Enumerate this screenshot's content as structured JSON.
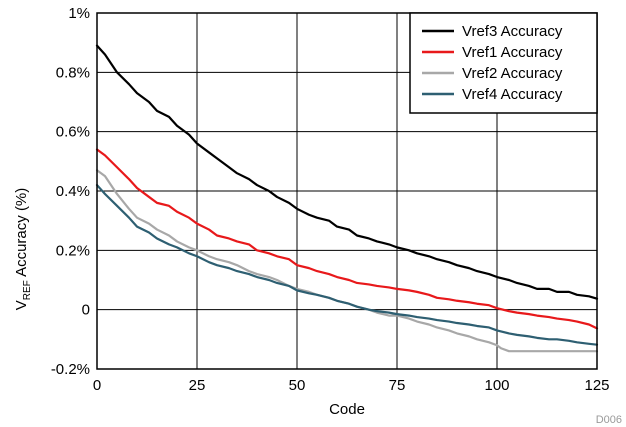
{
  "chart_data": {
    "type": "line",
    "xlabel": "Code",
    "ylabel_main": "V",
    "ylabel_sub": "REF",
    "ylabel_rest": " Accuracy (%)",
    "xlim": [
      0,
      125
    ],
    "ylim": [
      -0.2,
      1.0
    ],
    "x_ticks": [
      0,
      25,
      50,
      75,
      100,
      125
    ],
    "x_tick_labels": [
      "0",
      "25",
      "50",
      "75",
      "100",
      "125"
    ],
    "y_ticks": [
      -0.2,
      0,
      0.2,
      0.4,
      0.6,
      0.8,
      1.0
    ],
    "y_tick_labels": [
      "-0.2%",
      "0",
      "0.2%",
      "0.4%",
      "0.6%",
      "0.8%",
      "1%"
    ],
    "grid": true,
    "legend_position": "top-right",
    "figure_id": "D006",
    "series": [
      {
        "name": "Vref3 Accuracy",
        "color": "#000000",
        "x": [
          0,
          2,
          5,
          8,
          10,
          13,
          15,
          18,
          20,
          23,
          25,
          28,
          30,
          33,
          35,
          38,
          40,
          43,
          45,
          48,
          50,
          53,
          55,
          58,
          60,
          63,
          65,
          68,
          70,
          73,
          75,
          78,
          80,
          83,
          85,
          88,
          90,
          93,
          95,
          98,
          100,
          103,
          105,
          108,
          110,
          113,
          115,
          118,
          120,
          123,
          125
        ],
        "y": [
          0.89,
          0.86,
          0.8,
          0.76,
          0.73,
          0.7,
          0.67,
          0.65,
          0.62,
          0.59,
          0.56,
          0.53,
          0.51,
          0.48,
          0.46,
          0.44,
          0.42,
          0.4,
          0.38,
          0.36,
          0.34,
          0.32,
          0.31,
          0.3,
          0.28,
          0.27,
          0.25,
          0.24,
          0.23,
          0.22,
          0.21,
          0.2,
          0.19,
          0.18,
          0.17,
          0.16,
          0.15,
          0.14,
          0.13,
          0.12,
          0.11,
          0.1,
          0.09,
          0.08,
          0.07,
          0.07,
          0.06,
          0.06,
          0.05,
          0.045,
          0.037
        ]
      },
      {
        "name": "Vref1 Accuracy",
        "color": "#e8191b",
        "x": [
          0,
          2,
          5,
          8,
          10,
          13,
          15,
          18,
          20,
          23,
          25,
          28,
          30,
          33,
          35,
          38,
          40,
          43,
          45,
          48,
          50,
          53,
          55,
          58,
          60,
          63,
          65,
          68,
          70,
          73,
          75,
          78,
          80,
          83,
          85,
          88,
          90,
          93,
          95,
          98,
          100,
          103,
          105,
          108,
          110,
          113,
          115,
          118,
          120,
          123,
          125
        ],
        "y": [
          0.54,
          0.52,
          0.48,
          0.44,
          0.41,
          0.38,
          0.36,
          0.35,
          0.33,
          0.31,
          0.29,
          0.27,
          0.25,
          0.24,
          0.23,
          0.22,
          0.2,
          0.19,
          0.18,
          0.17,
          0.15,
          0.14,
          0.13,
          0.12,
          0.11,
          0.1,
          0.09,
          0.085,
          0.08,
          0.075,
          0.07,
          0.065,
          0.06,
          0.05,
          0.04,
          0.035,
          0.03,
          0.025,
          0.02,
          0.015,
          0.005,
          -0.005,
          -0.01,
          -0.015,
          -0.02,
          -0.025,
          -0.03,
          -0.035,
          -0.04,
          -0.05,
          -0.063
        ]
      },
      {
        "name": "Vref2 Accuracy",
        "color": "#a8a8a8",
        "x": [
          0,
          2,
          5,
          8,
          10,
          13,
          15,
          18,
          20,
          23,
          25,
          28,
          30,
          33,
          35,
          38,
          40,
          43,
          45,
          48,
          50,
          53,
          55,
          58,
          60,
          63,
          65,
          68,
          70,
          73,
          75,
          78,
          80,
          83,
          85,
          88,
          90,
          93,
          95,
          98,
          100,
          101,
          103,
          105,
          108,
          110,
          113,
          115,
          118,
          120,
          123,
          125
        ],
        "y": [
          0.47,
          0.45,
          0.39,
          0.34,
          0.31,
          0.29,
          0.27,
          0.25,
          0.23,
          0.21,
          0.2,
          0.18,
          0.17,
          0.16,
          0.15,
          0.13,
          0.12,
          0.11,
          0.1,
          0.08,
          0.07,
          0.06,
          0.05,
          0.04,
          0.03,
          0.02,
          0.01,
          0.0,
          -0.01,
          -0.02,
          -0.02,
          -0.03,
          -0.04,
          -0.05,
          -0.06,
          -0.07,
          -0.08,
          -0.09,
          -0.1,
          -0.11,
          -0.12,
          -0.13,
          -0.14,
          -0.14,
          -0.14,
          -0.14,
          -0.14,
          -0.14,
          -0.14,
          -0.14,
          -0.14,
          -0.14
        ]
      },
      {
        "name": "Vref4 Accuracy",
        "color": "#2e5f72",
        "x": [
          0,
          2,
          5,
          8,
          10,
          13,
          15,
          18,
          20,
          23,
          25,
          28,
          30,
          33,
          35,
          38,
          40,
          43,
          45,
          48,
          50,
          53,
          55,
          58,
          60,
          63,
          65,
          68,
          70,
          73,
          75,
          78,
          80,
          83,
          85,
          88,
          90,
          93,
          95,
          98,
          100,
          103,
          105,
          108,
          110,
          113,
          115,
          118,
          120,
          123,
          125
        ],
        "y": [
          0.42,
          0.39,
          0.35,
          0.31,
          0.28,
          0.26,
          0.24,
          0.22,
          0.21,
          0.19,
          0.18,
          0.16,
          0.15,
          0.14,
          0.13,
          0.12,
          0.11,
          0.1,
          0.09,
          0.08,
          0.065,
          0.055,
          0.05,
          0.04,
          0.03,
          0.02,
          0.01,
          0.0,
          -0.005,
          -0.01,
          -0.015,
          -0.02,
          -0.025,
          -0.03,
          -0.035,
          -0.04,
          -0.045,
          -0.05,
          -0.055,
          -0.06,
          -0.07,
          -0.08,
          -0.085,
          -0.09,
          -0.095,
          -0.1,
          -0.1,
          -0.105,
          -0.11,
          -0.115,
          -0.118
        ]
      }
    ]
  }
}
